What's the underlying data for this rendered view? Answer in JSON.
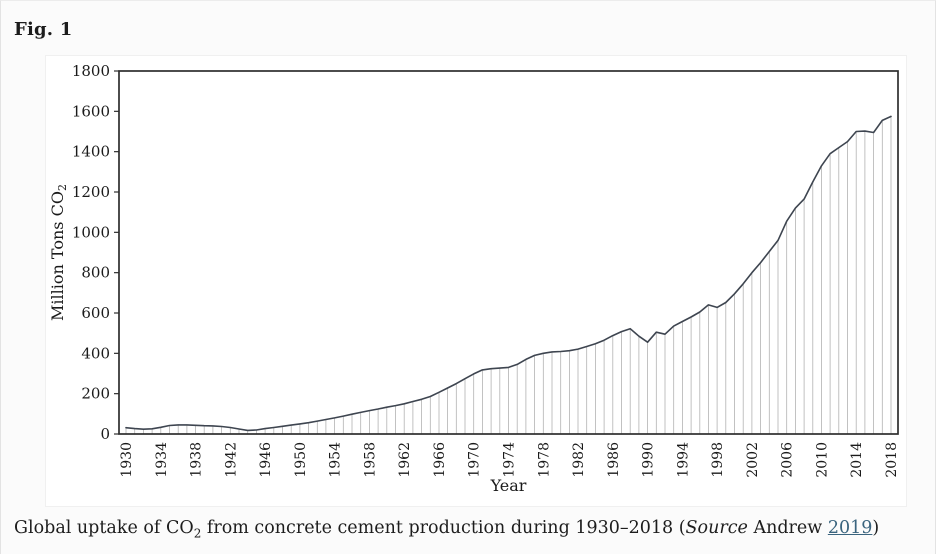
{
  "figure": {
    "label": "Fig. 1",
    "caption": {
      "prefix": "Global uptake of CO",
      "subscript": "2",
      "middle": " from concrete cement production during 1930–2018 (",
      "source_word": "Source",
      "after_source": " Andrew ",
      "link": "2019",
      "suffix": ")"
    }
  },
  "chart_data": {
    "type": "line",
    "style": "line with per-year vertical droplines to baseline (hatched area look)",
    "title": "",
    "xlabel": "Year",
    "ylabel": {
      "text": "Million Tons CO",
      "subscript": "2"
    },
    "x_start": 1930,
    "x_end": 2018,
    "x_ticks": [
      1930,
      1934,
      1938,
      1942,
      1946,
      1950,
      1954,
      1958,
      1962,
      1966,
      1970,
      1974,
      1978,
      1982,
      1986,
      1990,
      1994,
      1998,
      2002,
      2006,
      2010,
      2014,
      2018
    ],
    "ylim": [
      0,
      1800
    ],
    "y_ticks": [
      0,
      200,
      400,
      600,
      800,
      1000,
      1200,
      1400,
      1600,
      1800
    ],
    "values": [
      31,
      27,
      24,
      26,
      33,
      42,
      45,
      45,
      43,
      41,
      40,
      37,
      32,
      25,
      18,
      20,
      27,
      32,
      38,
      44,
      50,
      56,
      64,
      72,
      80,
      89,
      98,
      107,
      116,
      124,
      133,
      141,
      150,
      161,
      172,
      186,
      207,
      228,
      250,
      274,
      298,
      318,
      324,
      327,
      330,
      345,
      370,
      390,
      400,
      407,
      409,
      413,
      421,
      434,
      448,
      465,
      488,
      508,
      522,
      485,
      455,
      505,
      495,
      535,
      558,
      580,
      605,
      640,
      628,
      652,
      695,
      745,
      800,
      850,
      905,
      960,
      1055,
      1120,
      1165,
      1250,
      1330,
      1390,
      1420,
      1450,
      1500,
      1502,
      1495,
      1555,
      1575
    ],
    "colors": {
      "line": "#3e4550",
      "dropline": "#b2b2b2",
      "axis": "#2e2e2e",
      "text": "#1a1a1a",
      "link": "#3a647e"
    },
    "grid": false,
    "legend": "none"
  }
}
